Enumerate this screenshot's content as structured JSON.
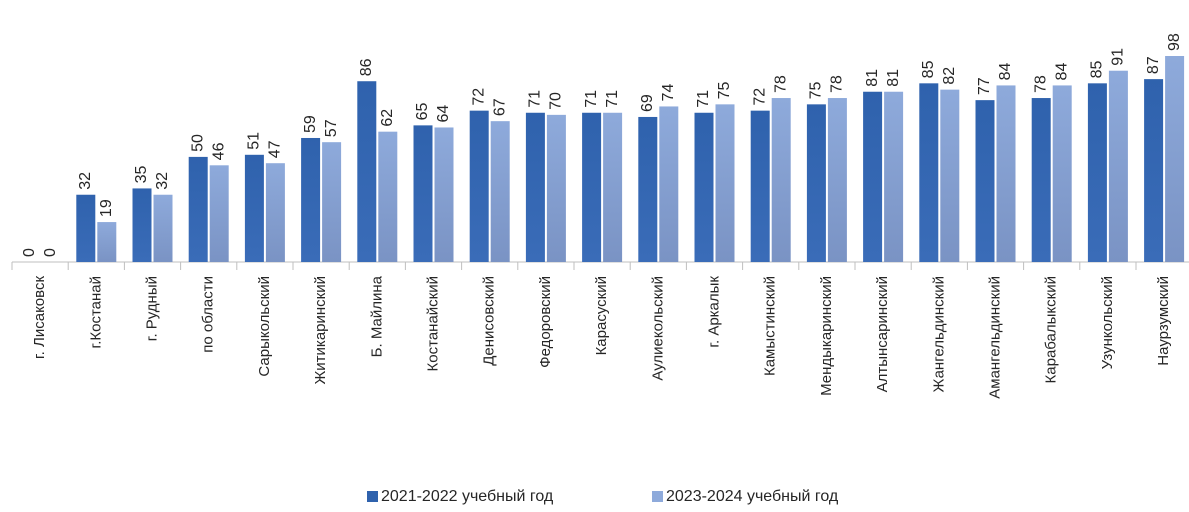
{
  "chart_data": {
    "type": "bar",
    "categories": [
      "г. Лисаковск",
      "г.Костанай",
      "г. Рудный",
      "по области",
      "Сарыкольский",
      "Житикаринский",
      "Б. Майлина",
      "Костанайский",
      "Денисовский",
      "Федоровский",
      "Карасуский",
      "Аулиекольский",
      "г. Аркалык",
      "Камыстинский",
      "Мендыкаринский",
      "Алтынсаринский",
      "Жангельдинский",
      "Амангельдинский",
      "Карабалыкский",
      "Узункольский",
      "Наурзумский"
    ],
    "series": [
      {
        "name": "2021-2022 учебный год",
        "color": "#2f62ad",
        "values": [
          0,
          32,
          35,
          50,
          51,
          59,
          86,
          65,
          72,
          71,
          71,
          69,
          71,
          72,
          75,
          81,
          85,
          77,
          78,
          85,
          87
        ]
      },
      {
        "name": "2023-2024 учебный год",
        "color": "#8eaadb",
        "values": [
          0,
          19,
          32,
          46,
          47,
          57,
          62,
          64,
          67,
          70,
          71,
          74,
          75,
          78,
          78,
          81,
          82,
          84,
          84,
          91,
          98
        ]
      }
    ],
    "legend": "bottom"
  }
}
